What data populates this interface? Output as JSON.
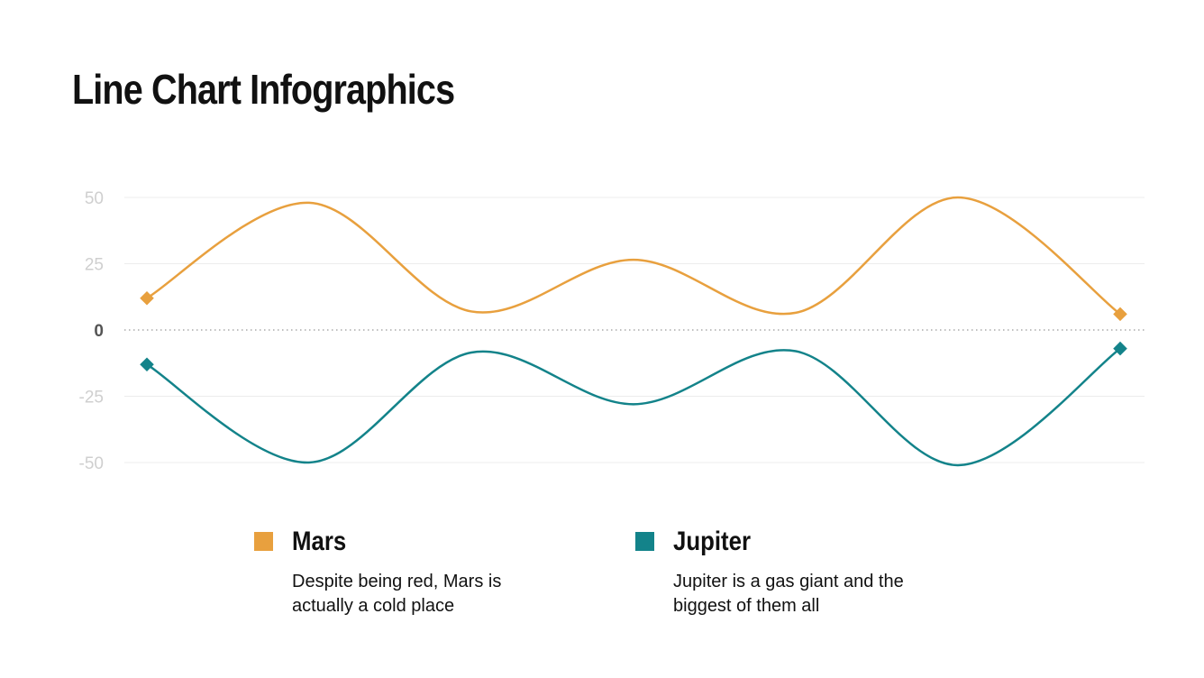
{
  "title": "Line Chart Infographics",
  "chart_data": {
    "type": "line",
    "smooth": true,
    "ylim": [
      -50,
      50
    ],
    "yticks": [
      "50",
      "25",
      "0",
      "-25",
      "-50"
    ],
    "grid": true,
    "zero_line": "dotted",
    "x": [
      1,
      2,
      3,
      4,
      5,
      6,
      7
    ],
    "series": [
      {
        "name": "Mars",
        "color": "#E8A03E",
        "values": [
          12,
          48,
          7,
          26.5,
          6.5,
          50,
          6
        ]
      },
      {
        "name": "Jupiter",
        "color": "#13838A",
        "values": [
          -13,
          -50,
          -8.5,
          -28,
          -8,
          -51,
          -7
        ]
      }
    ]
  },
  "legend": [
    {
      "name": "Mars",
      "color": "#E8A03E",
      "description": "Despite being red, Mars is actually a cold place"
    },
    {
      "name": "Jupiter",
      "color": "#13838A",
      "description": "Jupiter is a gas giant and the biggest of them all"
    }
  ]
}
